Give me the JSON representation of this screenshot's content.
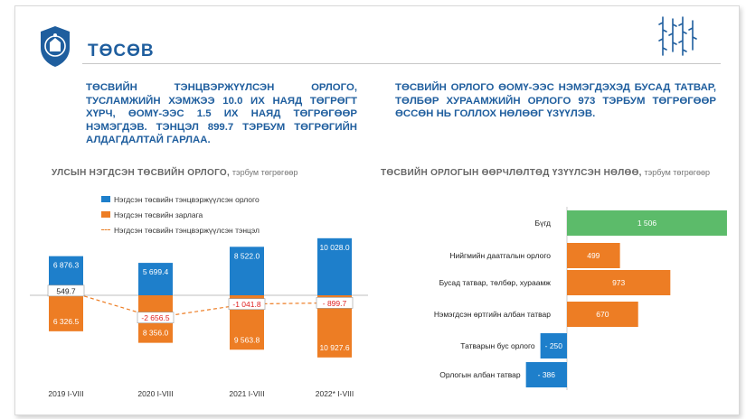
{
  "header": {
    "title": "ТӨСӨВ"
  },
  "colors": {
    "blue": "#1e7fcb",
    "orange": "#ed7d24",
    "green": "#5cbb6a",
    "title_blue": "#1f5e9e",
    "balance_neg": "#e02020"
  },
  "headlines": {
    "left": "ТӨСВИЙН ТЭНЦВЭРЖҮҮЛСЭН ОРЛОГО, ТУСЛАМЖИЙН ХЭМЖЭЭ 10.0 ИХ НАЯД ТӨГРӨГТ ХҮРЧ, ӨОМҮ-ЭЭС 1.5 ИХ НАЯД ТӨГРӨГӨӨР НЭМЭГДЭВ. ТЭНЦЭЛ 899.7 ТЭРБУМ ТӨГРӨГИЙН АЛДАГДАЛТАЙ ГАРЛАА.",
    "right": "ТӨСВИЙН ОРЛОГО ӨОМҮ-ЭЭС НЭМЭГДЭХЭД БУСАД ТАТВАР, ТӨЛБӨР ХУРААМЖИЙН ОРЛОГО 973 ТЭРБУМ ТӨГРӨГӨӨР ӨССӨН НЬ ГОЛЛОХ НӨЛӨӨГ ҮЗҮҮЛЭВ."
  },
  "chart_data": [
    {
      "type": "bar",
      "title": "УЛСЫН НЭГДСЭН ТӨСВИЙН ОРЛОГО,",
      "unit": "тэрбум төгрөгөөр",
      "categories": [
        "2019 I-VIII",
        "2020 I-VIII",
        "2021 I-VIII",
        "2022* I-VIII"
      ],
      "series": [
        {
          "name": "Нэгдсэн төсвийн тэнцвэржүүлсэн орлого",
          "kind": "bar-up",
          "values": [
            6876.3,
            5699.4,
            8522.0,
            10028.0
          ],
          "labels": [
            "6 876.3",
            "5 699.4",
            "8 522.0",
            "10 028.0"
          ]
        },
        {
          "name": "Нэгдсэн төсвийн зарлага",
          "kind": "bar-down",
          "values": [
            6326.5,
            8356.0,
            9563.8,
            10927.6
          ],
          "labels": [
            "6 326.5",
            "8 356.0",
            "9 563.8",
            "10 927.6"
          ]
        },
        {
          "name": "Нэгдсэн төсвийн тэнцвэржүүлсэн тэнцэл",
          "kind": "line",
          "values": [
            549.7,
            -2656.5,
            -1041.8,
            -899.7
          ],
          "labels": [
            "549.7",
            "-2 656.5",
            "-1 041.8",
            "- 899.7"
          ]
        }
      ]
    },
    {
      "type": "bar",
      "orientation": "horizontal",
      "title": "ТӨСВИЙН ОРЛОГЫН ӨӨРЧЛӨЛТӨД ҮЗҮҮЛСЭН НӨЛӨӨ,",
      "unit": "тэрбум төгрөгөөр",
      "categories": [
        "Бүгд",
        "Нийгмийн даатгалын орлого",
        "Бусад татвар, төлбөр, хураамж",
        "Нэмэгдсэн өртгийн албан татвар",
        "Татварын бус орлого",
        "Орлогын албан татвар"
      ],
      "values": [
        1506,
        499,
        973,
        670,
        -250,
        -386
      ],
      "labels": [
        "1 506",
        "499",
        "973",
        "670",
        "- 250",
        "- 386"
      ]
    }
  ]
}
